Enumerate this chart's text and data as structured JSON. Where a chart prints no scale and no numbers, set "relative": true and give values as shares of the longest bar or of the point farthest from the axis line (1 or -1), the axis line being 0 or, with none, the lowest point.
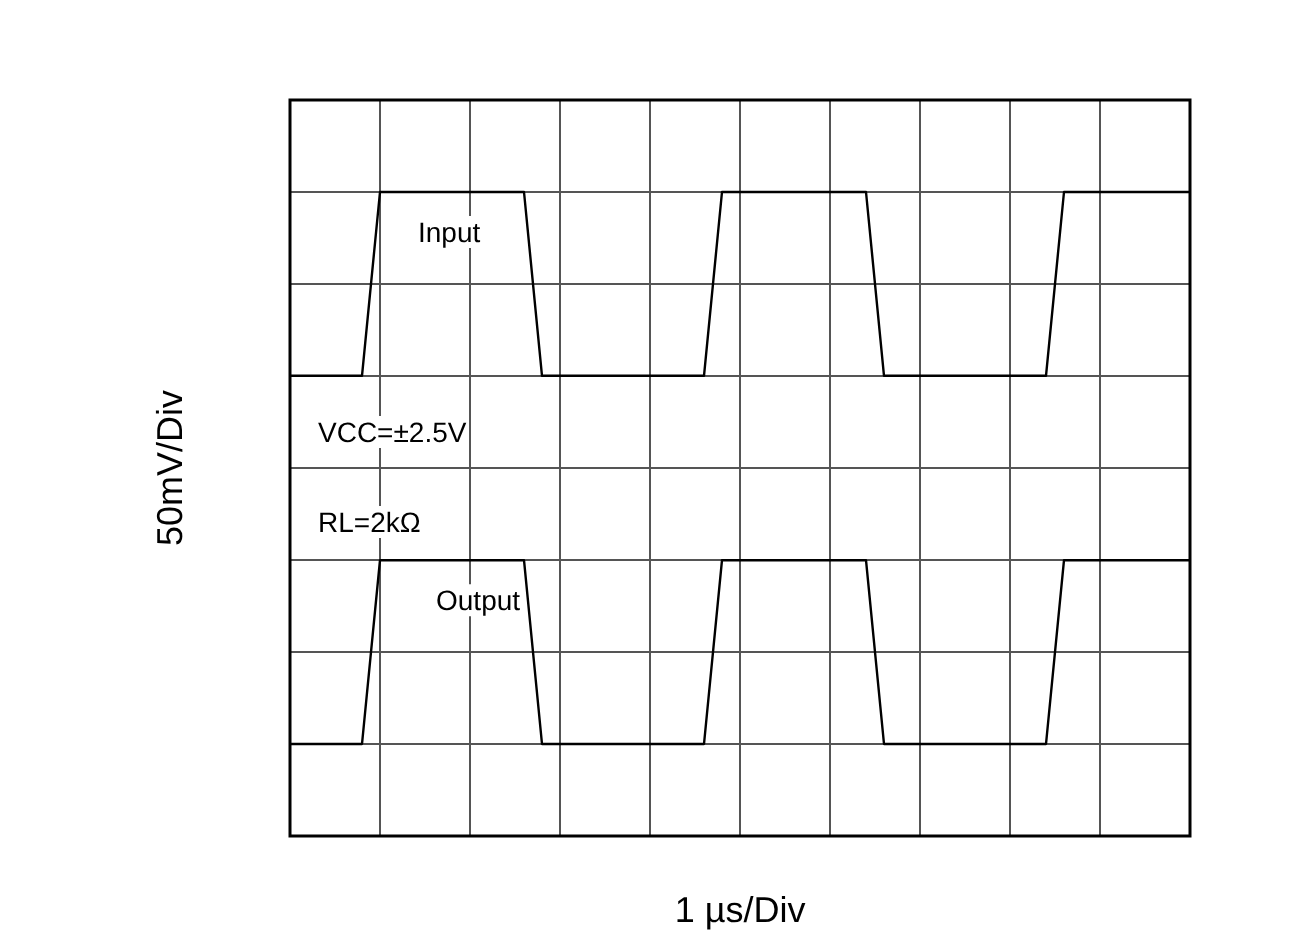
{
  "chart_data": {
    "type": "line",
    "xlabel": "1 µs/Div",
    "ylabel": "50mV/Div",
    "relative": true,
    "grid": true,
    "categories": [
      null,
      null,
      null,
      null,
      null,
      null,
      null,
      null,
      null,
      null,
      null,
      null,
      null,
      null,
      null,
      null,
      null,
      null,
      null,
      null,
      null,
      null,
      null,
      null,
      null,
      null,
      null,
      null,
      null,
      null,
      null,
      null,
      null,
      null,
      null,
      null,
      null,
      null,
      null,
      null,
      null,
      null,
      null,
      null,
      null,
      null,
      null,
      null,
      null,
      null,
      null
    ],
    "series": [
      {
        "name": "Input",
        "color": "#000000",
        "values": [
          0.667,
          0.667,
          0.667,
          0.667,
          0.667,
          1,
          1,
          1,
          1,
          1,
          1,
          1,
          1,
          1,
          0.667,
          0.667,
          0.667,
          0.667,
          0.667,
          0.667,
          0.667,
          0.667,
          0.667,
          0.667,
          1,
          1,
          1,
          1,
          1,
          1,
          1,
          1,
          1,
          0.667,
          0.667,
          0.667,
          0.667,
          0.667,
          0.667,
          0.667,
          0.667,
          0.667,
          0.667,
          1,
          1,
          1,
          1,
          1,
          1,
          1,
          1
        ]
      },
      {
        "name": "Output",
        "color": "#000000",
        "values": [
          0,
          0,
          0,
          0,
          0,
          0.333,
          0.333,
          0.333,
          0.333,
          0.333,
          0.333,
          0.333,
          0.333,
          0.333,
          0,
          0,
          0,
          0,
          0,
          0,
          0,
          0,
          0,
          0,
          0.333,
          0.333,
          0.333,
          0.333,
          0.333,
          0.333,
          0.333,
          0.333,
          0.333,
          0,
          0,
          0,
          0,
          0,
          0,
          0,
          0,
          0,
          0,
          0.333,
          0.333,
          0.333,
          0.333,
          0.333,
          0.333,
          0.333,
          0.333
        ]
      }
    ],
    "annotations": [
      "VCC=±2.5V",
      "RL=2kΩ"
    ]
  }
}
